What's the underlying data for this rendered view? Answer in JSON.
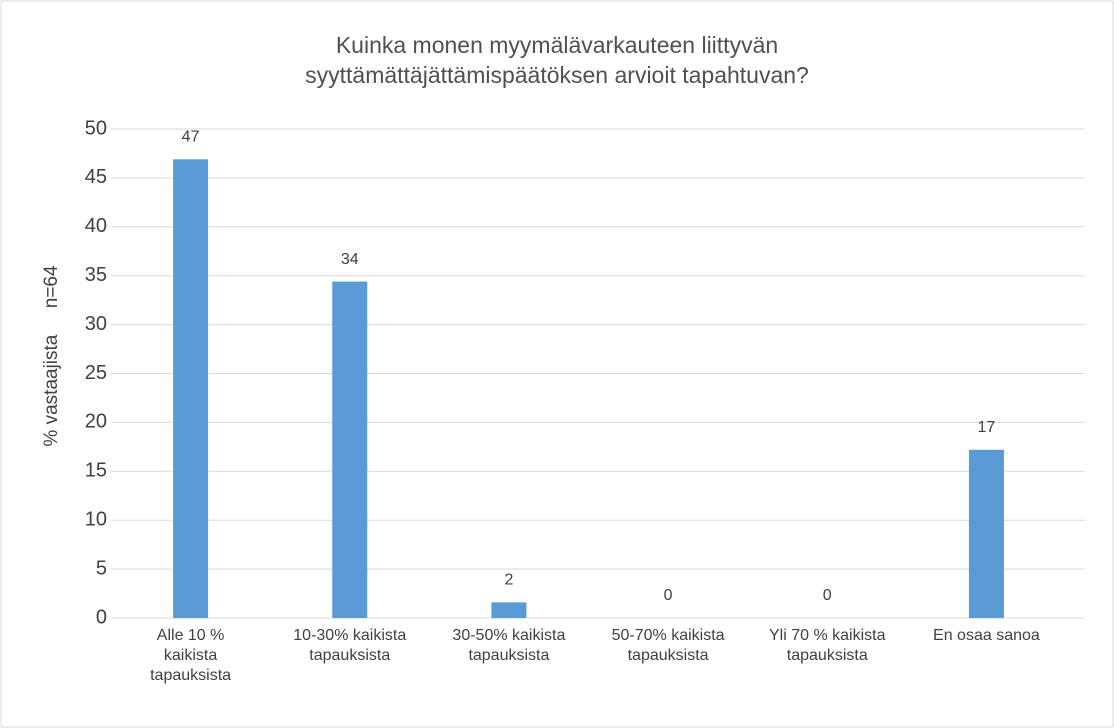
{
  "chart_data": {
    "type": "bar",
    "title": "Kuinka monen myymälävarkauteen liittyvän syyttämättäjättämispäätöksen arvioit tapahtuvan?",
    "y_label": "% vastaajista     n=64",
    "categories": [
      "Alle 10 % kaikista tapauksista",
      "10-30% kaikista tapauksista",
      "30-50% kaikista tapauksista",
      "50-70% kaikista tapauksista",
      "Yli 70 % kaikista tapauksista",
      "En osaa sanoa"
    ],
    "values": [
      46.9,
      34.4,
      1.6,
      0,
      0,
      17.2
    ],
    "value_labels": [
      "47",
      "34",
      "2",
      "0",
      "0",
      "17"
    ],
    "color": "#5b9bd5",
    "ylim": [
      0,
      50
    ],
    "yticks": [
      0,
      5,
      10,
      15,
      20,
      25,
      30,
      35,
      40,
      45,
      50
    ],
    "grid": true
  }
}
